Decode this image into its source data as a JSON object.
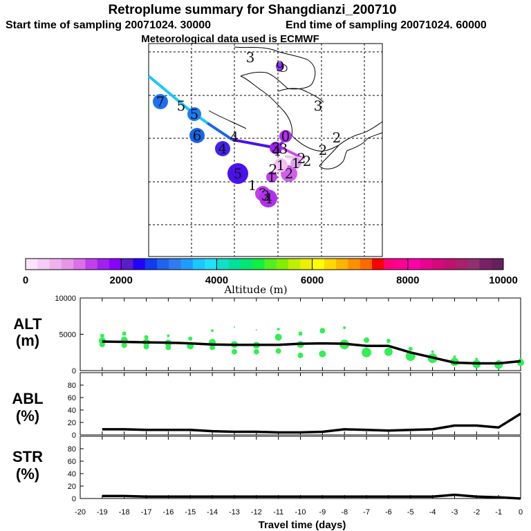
{
  "header": {
    "title": "Retroplume summary for Shangdianzi_200710",
    "start": "Start time of sampling 20071024. 30000",
    "end": "End time of sampling 20071024. 60000",
    "met": "Meteorological data used is ECMWF"
  },
  "colorbar": {
    "label": "Altitude (m)",
    "ticks": [
      "0",
      "2000",
      "4000",
      "6000",
      "8000",
      "10000"
    ],
    "colors": [
      "#fbe4fb",
      "#f6ccf6",
      "#efb2ef",
      "#e796e7",
      "#dd70e8",
      "#c040ec",
      "#a020f0",
      "#8a00ff",
      "#5a1ec8",
      "#2200ff",
      "#0f3cf0",
      "#1f62f0",
      "#2f7cf2",
      "#1e9cff",
      "#18c8ff",
      "#20e0ff",
      "#10e0c8",
      "#00e0a0",
      "#00e870",
      "#10f040",
      "#50f020",
      "#80f000",
      "#c0f000",
      "#ecf000",
      "#ffff00",
      "#ffd800",
      "#ffb400",
      "#ff9000",
      "#ff6a00",
      "#ff0000",
      "#ff0080",
      "#ff0096",
      "#ff00a8",
      "#ec0090",
      "#d6087a",
      "#c01070",
      "#a8206c",
      "#903070",
      "#7a2068",
      "#661f5c"
    ]
  },
  "map": {
    "labels": [
      {
        "t": "3"
      },
      {
        "t": "3"
      },
      {
        "t": "5"
      },
      {
        "t": "2"
      },
      {
        "t": "2"
      },
      {
        "t": "2"
      },
      {
        "t": "1"
      },
      {
        "t": "2"
      },
      {
        "t": "4"
      },
      {
        "t": "4"
      },
      {
        "t": "3"
      },
      {
        "t": "2"
      },
      {
        "t": "3"
      }
    ],
    "markers": [
      {
        "t": "7",
        "color": "#1e6ff0"
      },
      {
        "t": "5",
        "color": "#1c7cf5"
      },
      {
        "t": "6",
        "color": "#1866e8"
      },
      {
        "t": "4",
        "color": "#4422ee"
      },
      {
        "t": "5",
        "color": "#4a10ee"
      },
      {
        "t": "1",
        "color": "#c040ec"
      },
      {
        "t": "2",
        "color": "#d060ec"
      },
      {
        "t": "3",
        "color": "#c040ec"
      },
      {
        "t": "4",
        "color": "#b030f0"
      },
      {
        "t": "3",
        "color": "#a020f0"
      },
      {
        "t": "1",
        "color": "#f0c0f0"
      },
      {
        "t": "0",
        "color": "#b030f0"
      },
      {
        "t": "9",
        "color": "#8a30ff"
      },
      {
        "t": "1",
        "color": "#e0a0f0"
      }
    ]
  },
  "chart_data": [
    {
      "type": "scatter",
      "panel": "ALT",
      "ylabel": "ALT\n(m)",
      "ylabel_lines": [
        "ALT",
        "(m)"
      ],
      "xlim": [
        -20,
        0
      ],
      "ylim": [
        0,
        10000
      ],
      "yticks": [
        "10000",
        "5000",
        "0"
      ],
      "series": [
        {
          "name": "median altitude",
          "x": [
            -19,
            -18,
            -17,
            -16,
            -15,
            -14,
            -13,
            -12,
            -11,
            -10,
            -9,
            -8,
            -7,
            -6,
            -5,
            -4,
            -3,
            -2,
            -1,
            0
          ],
          "values": [
            4000,
            3950,
            3900,
            3850,
            3750,
            3600,
            3550,
            3550,
            3550,
            3700,
            3750,
            3700,
            3400,
            3400,
            2500,
            1800,
            1100,
            1000,
            1000,
            1300
          ]
        },
        {
          "name": "particle clusters",
          "color": "#33ee55",
          "x": [
            -19,
            -19,
            -19,
            -18,
            -18,
            -18,
            -17,
            -17,
            -17,
            -16,
            -16,
            -16,
            -15,
            -15,
            -14,
            -14,
            -14,
            -13,
            -13,
            -13,
            -12,
            -12,
            -12,
            -11,
            -11,
            -11,
            -10,
            -10,
            -10,
            -9,
            -9,
            -8,
            -8,
            -7,
            -7,
            -6,
            -6,
            -5,
            -5,
            -4,
            -4,
            -3,
            -3,
            -2,
            -2,
            -1,
            -1,
            0,
            0
          ],
          "values": [
            4800,
            4100,
            3600,
            5100,
            4200,
            3500,
            4600,
            3900,
            3300,
            4800,
            3800,
            3200,
            4400,
            3400,
            5500,
            3900,
            3200,
            6000,
            3600,
            2600,
            5600,
            3500,
            2600,
            5700,
            4600,
            2700,
            5100,
            3600,
            2100,
            5500,
            2300,
            5900,
            3600,
            4200,
            2500,
            4100,
            2600,
            3000,
            2000,
            2600,
            1700,
            1900,
            1200,
            1600,
            900,
            1300,
            800,
            1400,
            1100
          ],
          "sizes": [
            3,
            5,
            4,
            3,
            5,
            4,
            3,
            5,
            4,
            2,
            5,
            4,
            3,
            5,
            2,
            5,
            4,
            1,
            5,
            4,
            1,
            5,
            4,
            2,
            5,
            4,
            3,
            5,
            4,
            4,
            5,
            2,
            7,
            4,
            7,
            3,
            6,
            3,
            7,
            2,
            7,
            2,
            6,
            2,
            6,
            2,
            6,
            3,
            5
          ]
        }
      ]
    },
    {
      "type": "line",
      "panel": "ABL",
      "ylabel_lines": [
        "ABL",
        "(%)"
      ],
      "xlim": [
        -20,
        0
      ],
      "ylim": [
        0,
        100
      ],
      "yticks": [
        "80",
        "60",
        "40",
        "20",
        "0"
      ],
      "series": [
        {
          "name": "ABL fraction",
          "x": [
            -19,
            -18,
            -17,
            -16,
            -15,
            -14,
            -13,
            -12,
            -11,
            -10,
            -9,
            -8,
            -7,
            -6,
            -5,
            -4,
            -3,
            -2,
            -1,
            0
          ],
          "values": [
            9,
            9,
            8,
            8,
            8,
            6,
            5,
            5,
            4,
            4,
            5,
            9,
            8,
            7,
            8,
            9,
            15,
            15,
            12,
            34
          ]
        }
      ]
    },
    {
      "type": "line",
      "panel": "STR",
      "ylabel_lines": [
        "STR",
        "(%)"
      ],
      "xlim": [
        -20,
        0
      ],
      "ylim": [
        0,
        100
      ],
      "yticks": [
        "80",
        "60",
        "40",
        "20",
        "0"
      ],
      "xticks": [
        "-20",
        "-19",
        "-18",
        "-17",
        "-16",
        "-15",
        "-14",
        "-13",
        "-12",
        "-11",
        "-10",
        "-9",
        "-8",
        "-7",
        "-6",
        "-5",
        "-4",
        "-3",
        "-2",
        "-1",
        "0"
      ],
      "xlabel": "Travel time (days)",
      "series": [
        {
          "name": "stratosphere fraction",
          "x": [
            -19,
            -18,
            -17,
            -16,
            -15,
            -14,
            -13,
            -12,
            -11,
            -10,
            -9,
            -8,
            -7,
            -6,
            -5,
            -4,
            -3,
            -2,
            -1,
            0
          ],
          "values": [
            4,
            4,
            3,
            3,
            3,
            3,
            3,
            3,
            3,
            3,
            3,
            3,
            3,
            3,
            3,
            3,
            6,
            3,
            2,
            0
          ]
        }
      ]
    }
  ]
}
